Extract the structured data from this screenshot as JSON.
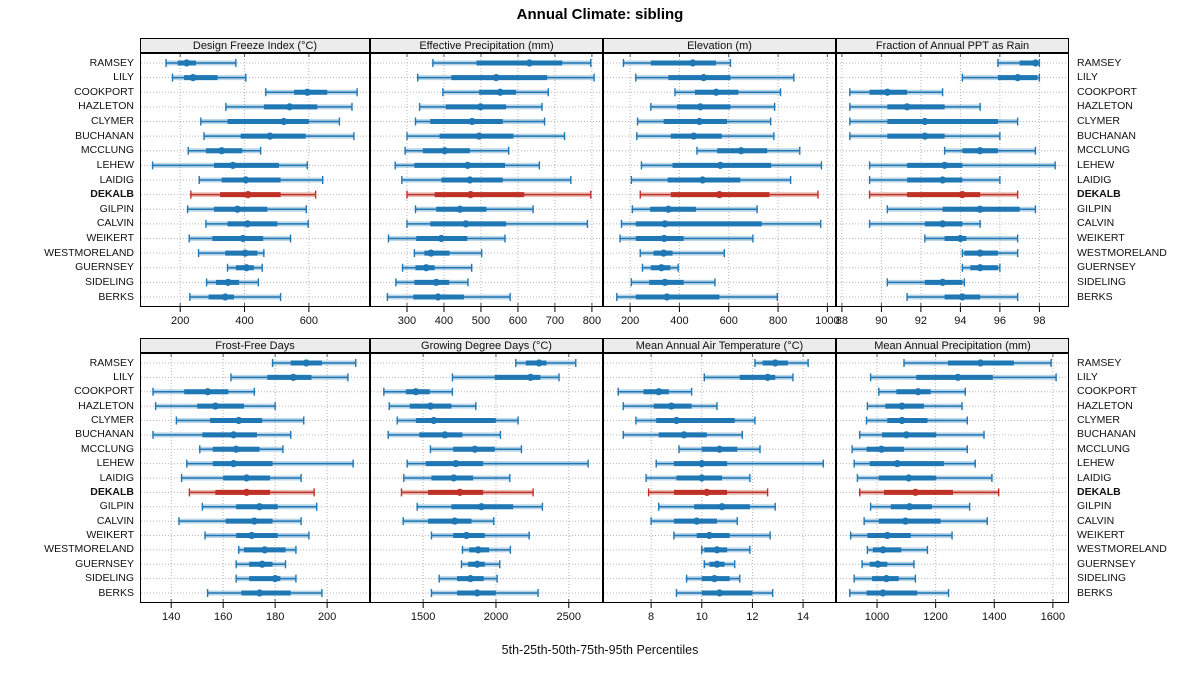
{
  "title": "Annual Climate: sibling",
  "caption": "5th-25th-50th-75th-95th Percentiles",
  "percentile_labels": [
    "5th",
    "25th",
    "50th",
    "75th",
    "95th"
  ],
  "highlight_site": "DEKALB",
  "sites": [
    "RAMSEY",
    "LILY",
    "COOKPORT",
    "HAZLETON",
    "CLYMER",
    "BUCHANAN",
    "MCCLUNG",
    "LEHEW",
    "LAIDIG",
    "DEKALB",
    "GILPIN",
    "CALVIN",
    "WEIKERT",
    "WESTMORELAND",
    "GUERNSEY",
    "SIDELING",
    "BERKS"
  ],
  "colors": {
    "series": "#1f77b4",
    "highlight": "#bf3026",
    "strip_bg": "#ececec",
    "panel_border": "#000000",
    "grid": "#b5b5b5",
    "tick": "#555555",
    "text": "#111111"
  },
  "chart_data": [
    {
      "type": "dotplot-percentiles",
      "title": "Design Freeze Index (°C)",
      "xlim": [
        75,
        790
      ],
      "ticks": [
        200,
        400,
        600
      ],
      "rows": [
        [
          156,
          192,
          220,
          249,
          373
        ],
        [
          176,
          212,
          240,
          316,
          404
        ],
        [
          466,
          554,
          595,
          657,
          750
        ],
        [
          342,
          460,
          540,
          626,
          734
        ],
        [
          264,
          347,
          522,
          600,
          695
        ],
        [
          274,
          388,
          479,
          590,
          740
        ],
        [
          225,
          280,
          329,
          393,
          450
        ],
        [
          114,
          305,
          364,
          507,
          595
        ],
        [
          259,
          329,
          404,
          512,
          643
        ],
        [
          233,
          324,
          411,
          512,
          621
        ],
        [
          223,
          305,
          378,
          471,
          592
        ],
        [
          280,
          347,
          409,
          502,
          598
        ],
        [
          228,
          300,
          395,
          458,
          543
        ],
        [
          257,
          340,
          402,
          440,
          460
        ],
        [
          347,
          373,
          406,
          429,
          455
        ],
        [
          282,
          311,
          349,
          383,
          443
        ],
        [
          230,
          288,
          340,
          367,
          512
        ]
      ]
    },
    {
      "type": "dotplot-percentiles",
      "title": "Effective Precipitation (mm)",
      "xlim": [
        200,
        830
      ],
      "ticks": [
        300,
        400,
        500,
        600,
        700,
        800
      ],
      "rows": [
        [
          370,
          488,
          631,
          720,
          797
        ],
        [
          329,
          420,
          541,
          679,
          806
        ],
        [
          397,
          495,
          552,
          595,
          682
        ],
        [
          334,
          405,
          499,
          568,
          665
        ],
        [
          323,
          363,
          476,
          559,
          672
        ],
        [
          300,
          388,
          495,
          588,
          726
        ],
        [
          295,
          343,
          402,
          470,
          575
        ],
        [
          268,
          320,
          464,
          565,
          658
        ],
        [
          286,
          393,
          470,
          559,
          743
        ],
        [
          300,
          375,
          472,
          617,
          797
        ],
        [
          323,
          379,
          443,
          515,
          641
        ],
        [
          300,
          363,
          459,
          568,
          788
        ],
        [
          250,
          325,
          393,
          463,
          565
        ],
        [
          320,
          347,
          365,
          415,
          502
        ],
        [
          288,
          323,
          352,
          375,
          475
        ],
        [
          270,
          320,
          379,
          414,
          465
        ],
        [
          247,
          317,
          384,
          454,
          579
        ]
      ]
    },
    {
      "type": "dotplot-percentiles",
      "title": "Elevation (m)",
      "xlim": [
        90,
        1035
      ],
      "ticks": [
        200,
        400,
        600,
        800,
        1000
      ],
      "rows": [
        [
          173,
          284,
          454,
          548,
          607
        ],
        [
          223,
          355,
          498,
          607,
          864
        ],
        [
          382,
          463,
          549,
          639,
          810
        ],
        [
          284,
          390,
          485,
          607,
          786
        ],
        [
          230,
          336,
          481,
          593,
          770
        ],
        [
          227,
          365,
          458,
          572,
          783
        ],
        [
          471,
          553,
          650,
          756,
          888
        ],
        [
          246,
          372,
          566,
          772,
          976
        ],
        [
          205,
          352,
          494,
          647,
          851
        ],
        [
          241,
          365,
          562,
          765,
          962
        ],
        [
          209,
          281,
          355,
          467,
          715
        ],
        [
          165,
          223,
          341,
          734,
          973
        ],
        [
          159,
          223,
          338,
          417,
          698
        ],
        [
          241,
          295,
          336,
          372,
          582
        ],
        [
          250,
          284,
          327,
          363,
          395
        ],
        [
          205,
          277,
          341,
          417,
          544
        ],
        [
          146,
          223,
          349,
          562,
          797
        ]
      ]
    },
    {
      "type": "dotplot-percentiles",
      "title": "Fraction of Annual PPT as Rain",
      "xlim": [
        87.7,
        99.5
      ],
      "ticks": [
        88,
        90,
        92,
        94,
        96,
        98
      ],
      "rows": [
        [
          95.9,
          97.0,
          97.8,
          97.9,
          98.0
        ],
        [
          94.1,
          95.9,
          96.9,
          97.9,
          98.0
        ],
        [
          88.4,
          89.4,
          90.3,
          91.3,
          93.1
        ],
        [
          88.4,
          90.3,
          91.3,
          93.2,
          95.0
        ],
        [
          88.4,
          90.3,
          92.2,
          95.9,
          96.9
        ],
        [
          88.4,
          90.3,
          92.2,
          93.2,
          96.0
        ],
        [
          93.2,
          94.1,
          95.0,
          95.9,
          97.8
        ],
        [
          89.4,
          91.3,
          93.2,
          94.1,
          98.8
        ],
        [
          89.4,
          91.3,
          93.1,
          94.1,
          96.0
        ],
        [
          89.4,
          91.3,
          94.1,
          95.0,
          96.9
        ],
        [
          90.3,
          93.1,
          95.0,
          97.0,
          97.8
        ],
        [
          89.4,
          92.2,
          93.1,
          94.1,
          95.0
        ],
        [
          92.2,
          93.2,
          94.0,
          94.3,
          96.9
        ],
        [
          94.1,
          94.2,
          95.0,
          95.9,
          96.9
        ],
        [
          94.1,
          94.5,
          95.0,
          95.9,
          96.0
        ],
        [
          90.3,
          92.2,
          93.1,
          94.1,
          94.2
        ],
        [
          91.3,
          93.2,
          94.1,
          95.0,
          96.9
        ]
      ]
    },
    {
      "type": "dotplot-percentiles",
      "title": "Frost-Free Days",
      "xlim": [
        128,
        216.5
      ],
      "ticks": [
        140,
        160,
        180,
        200
      ],
      "rows": [
        [
          179,
          186,
          192,
          198,
          211
        ],
        [
          163,
          177,
          187,
          194,
          208
        ],
        [
          133,
          145,
          154,
          162,
          172
        ],
        [
          134,
          150,
          157,
          168,
          180
        ],
        [
          142,
          155,
          166,
          175,
          191
        ],
        [
          133,
          152,
          164,
          173,
          186
        ],
        [
          151,
          156,
          165,
          174,
          183
        ],
        [
          146,
          156,
          164,
          179,
          210
        ],
        [
          144,
          160,
          169,
          178,
          190
        ],
        [
          147,
          157,
          169,
          178,
          195
        ],
        [
          152,
          165,
          174,
          181,
          196
        ],
        [
          143,
          161,
          172,
          179,
          190
        ],
        [
          153,
          165,
          171,
          181,
          193
        ],
        [
          166,
          168,
          176,
          184,
          188
        ],
        [
          165,
          170,
          175,
          179,
          184
        ],
        [
          165,
          170,
          180,
          182,
          188
        ],
        [
          154,
          167,
          174,
          186,
          198
        ]
      ]
    },
    {
      "type": "dotplot-percentiles",
      "title": "Growing Degree Days (°C)",
      "xlim": [
        1135,
        2735
      ],
      "ticks": [
        1500,
        2000,
        2500
      ],
      "rows": [
        [
          2136,
          2205,
          2296,
          2347,
          2548
        ],
        [
          1701,
          1992,
          2237,
          2305,
          2433
        ],
        [
          1230,
          1381,
          1450,
          1546,
          1701
        ],
        [
          1267,
          1408,
          1550,
          1694,
          1862
        ],
        [
          1322,
          1450,
          1573,
          1999,
          2152
        ],
        [
          1260,
          1473,
          1649,
          1770,
          2031
        ],
        [
          1550,
          1706,
          1855,
          1992,
          2175
        ],
        [
          1390,
          1518,
          1724,
          1912,
          2633
        ],
        [
          1367,
          1557,
          1710,
          1843,
          2095
        ],
        [
          1351,
          1534,
          1752,
          1912,
          2255
        ],
        [
          1459,
          1694,
          1900,
          2118,
          2319
        ],
        [
          1363,
          1534,
          1717,
          1832,
          1985
        ],
        [
          1557,
          1706,
          1797,
          1923,
          2228
        ],
        [
          1770,
          1816,
          1878,
          1953,
          2099
        ],
        [
          1763,
          1809,
          1871,
          1923,
          2026
        ],
        [
          1610,
          1733,
          1825,
          1916,
          2008
        ],
        [
          1557,
          1733,
          1871,
          1999,
          2289
        ]
      ]
    },
    {
      "type": "dotplot-percentiles",
      "title": "Mean Annual Air Temperature (°C)",
      "xlim": [
        6.1,
        15.3
      ],
      "ticks": [
        8,
        10,
        12,
        14
      ],
      "rows": [
        [
          12.1,
          12.4,
          12.9,
          13.4,
          14.2
        ],
        [
          10.1,
          11.5,
          12.6,
          12.9,
          13.6
        ],
        [
          6.7,
          7.7,
          8.3,
          8.7,
          9.6
        ],
        [
          6.9,
          8.1,
          8.8,
          9.6,
          10.6
        ],
        [
          7.4,
          8.2,
          9.0,
          11.3,
          12.1
        ],
        [
          6.9,
          8.3,
          9.3,
          10.2,
          11.6
        ],
        [
          9.1,
          10.0,
          10.7,
          11.4,
          12.3
        ],
        [
          8.2,
          8.9,
          10.0,
          11.0,
          14.8
        ],
        [
          7.8,
          9.0,
          10.0,
          10.8,
          11.9
        ],
        [
          7.9,
          8.9,
          10.2,
          11.0,
          12.6
        ],
        [
          8.3,
          9.7,
          10.8,
          11.9,
          12.9
        ],
        [
          8.0,
          8.9,
          9.8,
          10.6,
          11.4
        ],
        [
          8.9,
          9.8,
          10.3,
          11.1,
          12.7
        ],
        [
          10.0,
          10.1,
          10.6,
          11.0,
          11.9
        ],
        [
          10.1,
          10.3,
          10.6,
          10.9,
          11.3
        ],
        [
          9.4,
          10.0,
          10.5,
          11.1,
          11.5
        ],
        [
          9.0,
          10.0,
          10.7,
          12.0,
          12.8
        ]
      ]
    },
    {
      "type": "dotplot-percentiles",
      "title": "Mean Annual Precipitation (mm)",
      "xlim": [
        860,
        1655
      ],
      "ticks": [
        1000,
        1200,
        1400,
        1600
      ],
      "rows": [
        [
          1092,
          1242,
          1353,
          1467,
          1594
        ],
        [
          978,
          1134,
          1276,
          1395,
          1611
        ],
        [
          1006,
          1066,
          1140,
          1183,
          1301
        ],
        [
          967,
          1028,
          1085,
          1160,
          1290
        ],
        [
          964,
          1035,
          1085,
          1172,
          1308
        ],
        [
          941,
          1017,
          1100,
          1202,
          1365
        ],
        [
          915,
          964,
          1015,
          1092,
          1308
        ],
        [
          922,
          975,
          1069,
          1228,
          1335
        ],
        [
          933,
          1006,
          1108,
          1202,
          1392
        ],
        [
          941,
          1024,
          1131,
          1259,
          1415
        ],
        [
          978,
          1047,
          1111,
          1187,
          1316
        ],
        [
          956,
          1006,
          1097,
          1217,
          1376
        ],
        [
          910,
          967,
          1035,
          1115,
          1256
        ],
        [
          967,
          986,
          1020,
          1083,
          1172
        ],
        [
          949,
          975,
          1003,
          1035,
          1126
        ],
        [
          922,
          983,
          1032,
          1074,
          1131
        ],
        [
          907,
          964,
          1020,
          1137,
          1244
        ]
      ]
    }
  ]
}
